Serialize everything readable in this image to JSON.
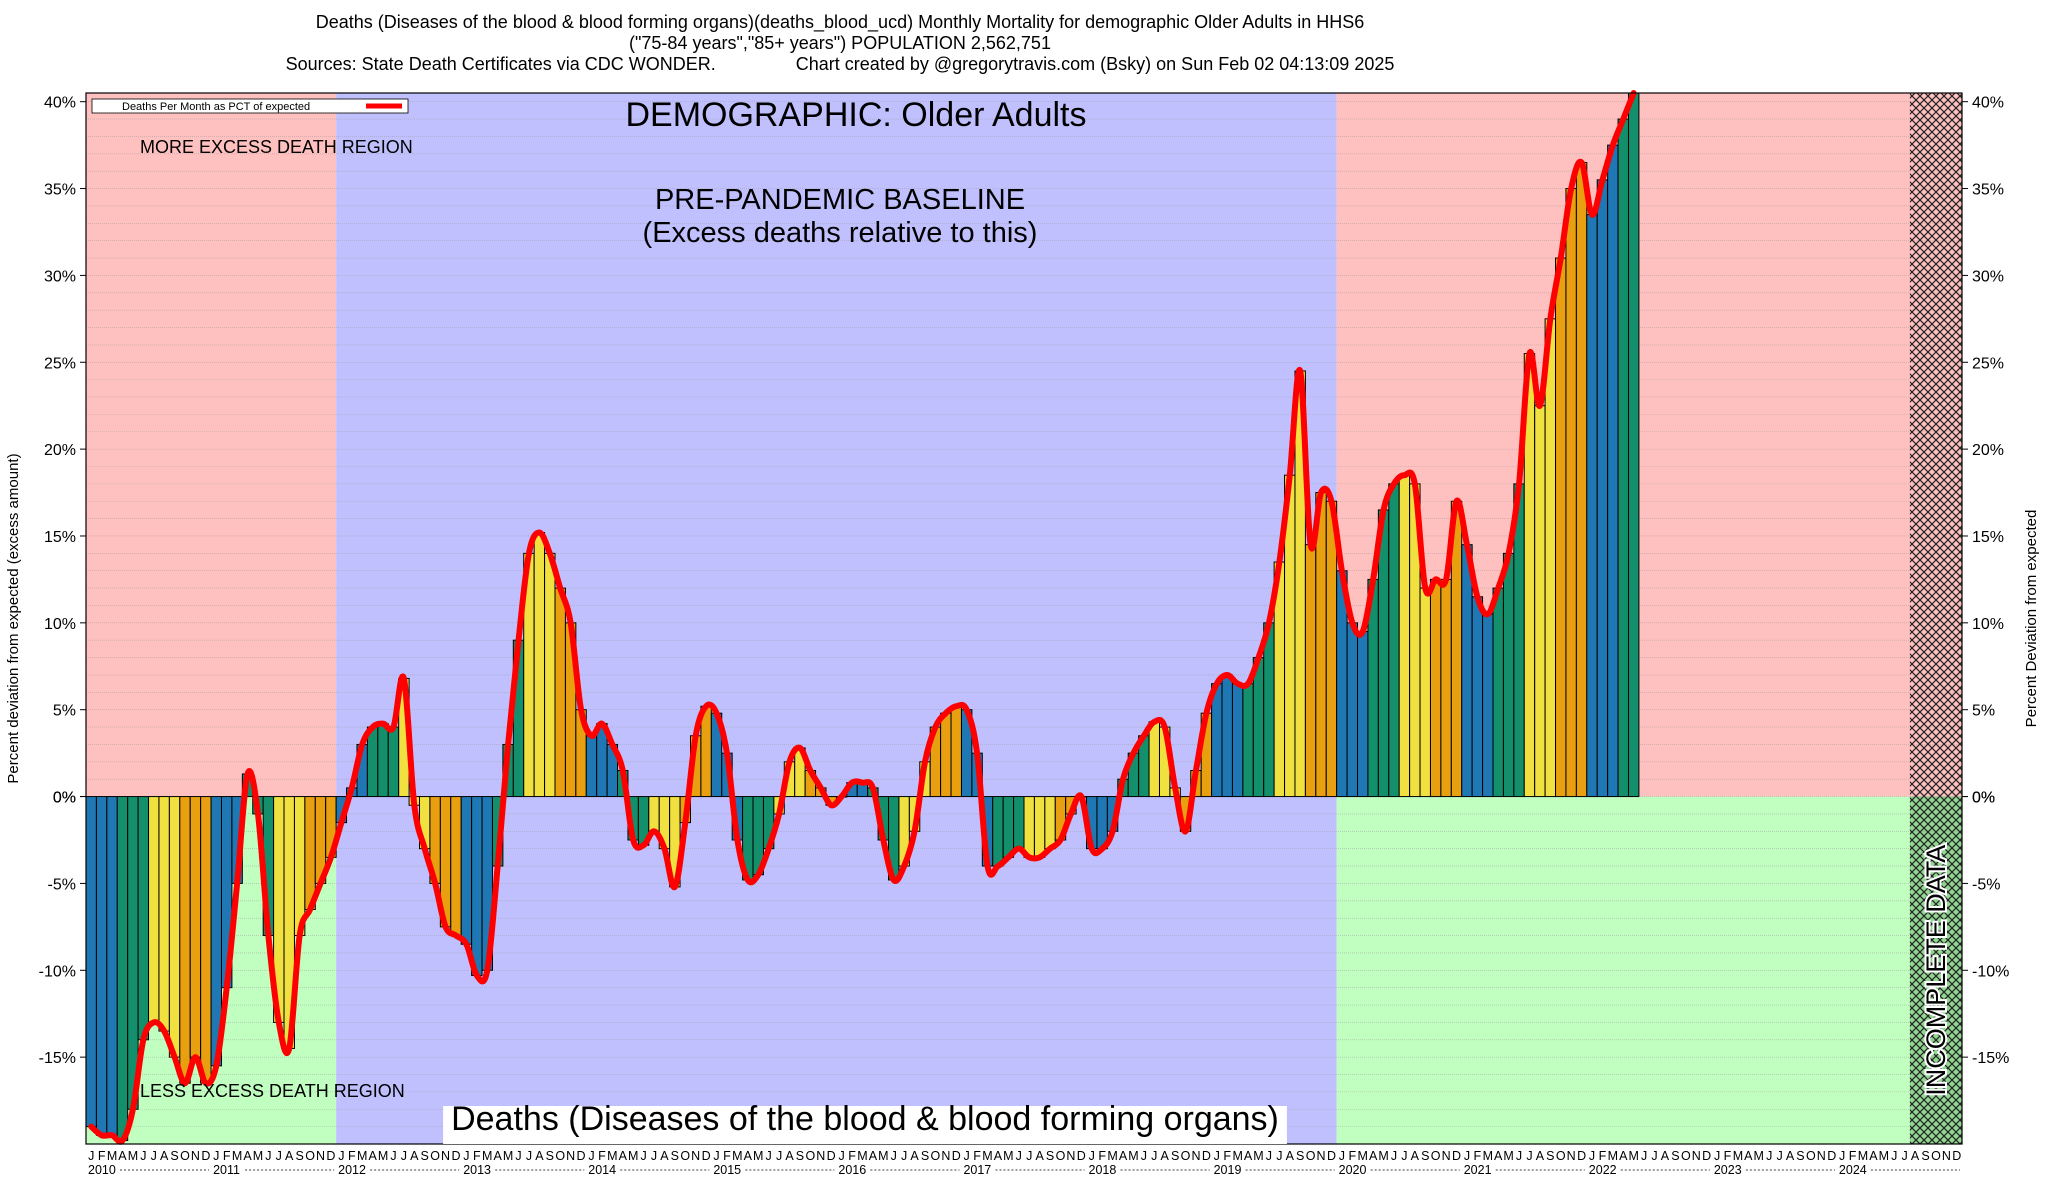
{
  "header": {
    "title": "Deaths (Diseases of the blood & blood forming organs)(deaths_blood_ucd) Monthly Mortality for demographic Older Adults in HHS6",
    "subtitle": "(\"75-84 years\",\"85+ years\") POPULATION 2,562,751",
    "sources": "Sources: State Death Certificates via CDC WONDER.",
    "credit": "Chart created by @gregorytravis.com (Bsky) on Sun Feb 02 04:13:09 2025"
  },
  "chart_data": {
    "type": "bar",
    "x_start": "2010-01",
    "months_per_year": [
      "J",
      "F",
      "M",
      "A",
      "M",
      "J",
      "J",
      "A",
      "S",
      "O",
      "N",
      "D"
    ],
    "years": [
      "2010",
      "2011",
      "2012",
      "2013",
      "2014",
      "2015",
      "2016",
      "2017",
      "2018",
      "2019",
      "2020",
      "2021",
      "2022",
      "2023",
      "2024"
    ],
    "values": [
      -19.0,
      -19.5,
      -19.5,
      -19.8,
      -18.0,
      -14.0,
      -13.0,
      -13.5,
      -15.0,
      -16.5,
      -15.0,
      -16.5,
      -15.5,
      -11.0,
      -5.0,
      1.3,
      -1.0,
      -8.0,
      -13.0,
      -14.5,
      -8.0,
      -6.5,
      -5.0,
      -3.5,
      -1.5,
      0.5,
      3.0,
      4.0,
      4.2,
      4.0,
      6.8,
      -0.5,
      -3.0,
      -5.0,
      -7.5,
      -8.0,
      -8.5,
      -10.3,
      -10.0,
      -4.0,
      3.0,
      9.0,
      14.0,
      15.2,
      14.0,
      12.0,
      10.0,
      5.0,
      3.5,
      4.2,
      3.0,
      1.5,
      -2.5,
      -2.8,
      -2.0,
      -3.0,
      -5.2,
      -1.5,
      3.5,
      5.2,
      4.8,
      2.5,
      -2.5,
      -4.8,
      -4.5,
      -3.0,
      -1.0,
      2.0,
      2.8,
      1.5,
      0.5,
      -0.5,
      0.0,
      0.8,
      0.8,
      0.5,
      -2.5,
      -4.8,
      -4.0,
      -2.0,
      2.0,
      4.0,
      4.8,
      5.2,
      5.0,
      2.5,
      -4.0,
      -4.0,
      -3.5,
      -3.0,
      -3.5,
      -3.5,
      -3.0,
      -2.5,
      -1.0,
      0.0,
      -3.0,
      -3.0,
      -2.0,
      1.0,
      2.5,
      3.5,
      4.3,
      4.0,
      0.5,
      -2.0,
      1.5,
      4.8,
      6.5,
      7.0,
      6.5,
      6.5,
      8.0,
      10.0,
      13.5,
      18.5,
      24.5,
      14.5,
      17.5,
      17.0,
      13.0,
      10.0,
      9.5,
      12.5,
      16.5,
      18.0,
      18.5,
      18.0,
      12.0,
      12.5,
      12.5,
      17.0,
      14.5,
      11.5,
      10.5,
      12.0,
      14.0,
      18.0,
      25.5,
      22.5,
      27.5,
      31.0,
      35.0,
      36.5,
      33.5,
      35.5,
      37.5,
      39.0,
      40.5
    ],
    "incomplete_from": "2024-08",
    "series": [
      {
        "name": "Deaths Per Month as PCT of expected",
        "color": "#ff0000"
      }
    ],
    "ylim": [
      -20,
      40.5
    ],
    "yticks": [
      -15,
      -10,
      -5,
      0,
      5,
      10,
      15,
      20,
      25,
      30,
      35,
      40
    ],
    "ylabel_left": "Percent deviation from expected (excess amount)",
    "ylabel_right": "Percent Deviation from expected",
    "bar_colors": [
      "#1f77b4",
      "#13906b",
      "#f0e040",
      "#e8a010"
    ],
    "baseline_range": [
      "2012-01",
      "2019-12"
    ],
    "region_colors": {
      "excess": "#ffc0c0",
      "less": "#c0ffc0",
      "baseline": "#c0c0ff",
      "incomplete": "#3a8a3a"
    }
  },
  "annotations": {
    "demographic": "DEMOGRAPHIC: Older Adults",
    "baseline_line1": "PRE-PANDEMIC BASELINE",
    "baseline_line2": "(Excess deaths relative to this)",
    "more_region": "MORE EXCESS DEATH REGION",
    "less_region": "LESS EXCESS DEATH REGION",
    "bottom_title": "Deaths (Diseases of the blood & blood forming organs)",
    "incomplete": "INCOMPLETE DATA"
  }
}
